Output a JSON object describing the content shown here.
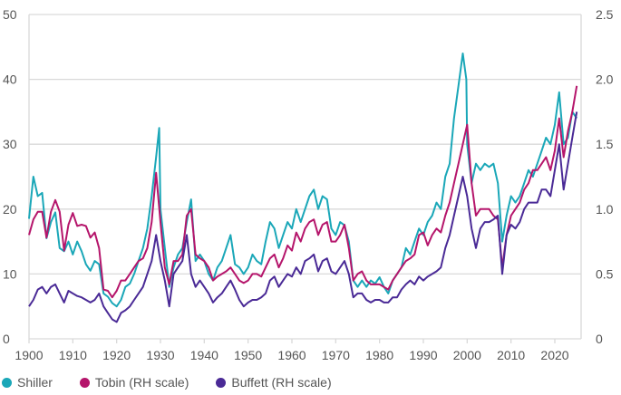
{
  "chart_data": {
    "type": "line",
    "title": "",
    "xlabel": "",
    "ylabel": "",
    "y2label": "",
    "xlim": [
      1900,
      2025
    ],
    "ylim": [
      0,
      50
    ],
    "y2lim": [
      0,
      2.5
    ],
    "grid": true,
    "legend_position": "bottom-left",
    "x_ticks": [
      "1900",
      "1910",
      "1920",
      "1930",
      "1940",
      "1950",
      "1960",
      "1970",
      "1980",
      "1990",
      "2000",
      "2010",
      "2020"
    ],
    "y_ticks": [
      "0",
      "10",
      "20",
      "30",
      "40",
      "50"
    ],
    "y2_ticks": [
      "0",
      "0.5",
      "1.0",
      "1.5",
      "2.0",
      "2.5"
    ],
    "series": [
      {
        "name": "Shiller",
        "axis": "left",
        "color": "#1aa7b8",
        "x": [
          1900,
          1901,
          1902,
          1903,
          1904,
          1905,
          1906,
          1907,
          1908,
          1909,
          1910,
          1911,
          1912,
          1913,
          1914,
          1915,
          1916,
          1917,
          1918,
          1919,
          1920,
          1921,
          1922,
          1923,
          1924,
          1925,
          1926,
          1927,
          1928,
          1929,
          1929.7,
          1930,
          1931,
          1932,
          1933,
          1934,
          1935,
          1936,
          1937,
          1938,
          1939,
          1940,
          1941,
          1942,
          1943,
          1944,
          1945,
          1946,
          1947,
          1948,
          1949,
          1950,
          1951,
          1952,
          1953,
          1954,
          1955,
          1956,
          1957,
          1958,
          1959,
          1960,
          1961,
          1962,
          1963,
          1964,
          1965,
          1966,
          1967,
          1968,
          1969,
          1970,
          1971,
          1972,
          1973,
          1974,
          1975,
          1976,
          1977,
          1978,
          1979,
          1980,
          1981,
          1982,
          1983,
          1984,
          1985,
          1986,
          1987,
          1988,
          1989,
          1990,
          1991,
          1992,
          1993,
          1994,
          1995,
          1996,
          1997,
          1998,
          1999,
          1999.8,
          2000,
          2001,
          2002,
          2003,
          2004,
          2005,
          2006,
          2007,
          2008,
          2009,
          2010,
          2011,
          2012,
          2013,
          2014,
          2015,
          2016,
          2017,
          2018,
          2019,
          2020,
          2021,
          2022,
          2023,
          2024,
          2025
        ],
        "values": [
          18.5,
          25,
          22,
          22.5,
          15.5,
          18,
          19.5,
          14,
          13.5,
          15,
          13,
          15,
          13.5,
          11.5,
          10.5,
          12,
          11.5,
          7,
          6.5,
          5.5,
          5,
          6,
          8,
          8.5,
          10,
          12,
          14,
          17,
          22,
          28,
          32.5,
          20,
          14,
          8,
          11,
          13,
          14,
          18,
          21.5,
          12,
          13,
          12,
          10,
          9,
          11,
          12,
          14,
          16,
          11.5,
          11,
          10,
          11,
          13,
          12,
          11.5,
          15,
          18,
          17,
          14,
          16,
          18,
          17,
          20,
          18,
          20,
          22,
          23,
          20,
          22,
          21.5,
          17,
          16,
          18,
          17.5,
          15,
          9,
          8,
          9,
          8,
          9,
          8.5,
          9.5,
          8,
          7,
          9,
          10,
          11,
          14,
          13,
          15,
          17,
          16,
          18,
          19,
          21,
          20,
          25,
          27,
          34,
          39,
          44,
          40,
          30,
          24,
          27,
          26,
          27,
          26.5,
          27,
          24,
          15,
          19,
          22,
          21,
          22,
          24,
          26,
          25,
          27,
          29,
          31,
          30,
          33,
          38,
          30,
          31,
          35,
          34
        ]
      },
      {
        "name": "Tobin (RH scale)",
        "axis": "right",
        "color": "#b5156b",
        "x": [
          1900,
          1901,
          1902,
          1903,
          1904,
          1905,
          1906,
          1907,
          1908,
          1909,
          1910,
          1911,
          1912,
          1913,
          1914,
          1915,
          1916,
          1917,
          1918,
          1919,
          1920,
          1921,
          1922,
          1923,
          1924,
          1925,
          1926,
          1927,
          1928,
          1929,
          1930,
          1931,
          1932,
          1933,
          1934,
          1935,
          1936,
          1937,
          1938,
          1939,
          1940,
          1941,
          1942,
          1943,
          1944,
          1945,
          1946,
          1947,
          1948,
          1949,
          1950,
          1951,
          1952,
          1953,
          1954,
          1955,
          1956,
          1957,
          1958,
          1959,
          1960,
          1961,
          1962,
          1963,
          1964,
          1965,
          1966,
          1967,
          1968,
          1969,
          1970,
          1971,
          1972,
          1973,
          1974,
          1975,
          1976,
          1977,
          1978,
          1979,
          1980,
          1981,
          1982,
          1983,
          1984,
          1985,
          1986,
          1987,
          1988,
          1989,
          1990,
          1991,
          1992,
          1993,
          1994,
          1995,
          1996,
          1997,
          1998,
          1999,
          2000,
          2001,
          2002,
          2003,
          2004,
          2005,
          2006,
          2007,
          2008,
          2009,
          2010,
          2011,
          2012,
          2013,
          2014,
          2015,
          2016,
          2017,
          2018,
          2019,
          2020,
          2021,
          2022,
          2023,
          2024,
          2025
        ],
        "values": [
          0.8,
          0.92,
          0.98,
          0.98,
          0.78,
          0.98,
          1.07,
          0.98,
          0.68,
          0.88,
          0.97,
          0.87,
          0.88,
          0.87,
          0.78,
          0.82,
          0.7,
          0.38,
          0.37,
          0.32,
          0.37,
          0.45,
          0.45,
          0.5,
          0.55,
          0.6,
          0.62,
          0.7,
          0.9,
          1.28,
          0.9,
          0.55,
          0.42,
          0.6,
          0.6,
          0.65,
          0.95,
          1.0,
          0.65,
          0.62,
          0.6,
          0.55,
          0.45,
          0.48,
          0.5,
          0.52,
          0.55,
          0.5,
          0.45,
          0.43,
          0.45,
          0.5,
          0.5,
          0.48,
          0.55,
          0.62,
          0.65,
          0.55,
          0.62,
          0.72,
          0.68,
          0.82,
          0.75,
          0.85,
          0.9,
          0.92,
          0.8,
          0.88,
          0.9,
          0.75,
          0.75,
          0.8,
          0.88,
          0.7,
          0.45,
          0.5,
          0.52,
          0.45,
          0.42,
          0.42,
          0.42,
          0.4,
          0.38,
          0.45,
          0.5,
          0.55,
          0.6,
          0.62,
          0.65,
          0.8,
          0.82,
          0.72,
          0.8,
          0.85,
          0.82,
          0.95,
          1.05,
          1.2,
          1.35,
          1.5,
          1.65,
          1.2,
          0.95,
          1.0,
          1.0,
          1.0,
          0.95,
          0.92,
          0.55,
          0.8,
          0.95,
          1.0,
          1.05,
          1.15,
          1.2,
          1.3,
          1.3,
          1.35,
          1.4,
          1.3,
          1.45,
          1.7,
          1.4,
          1.6,
          1.75,
          1.95
        ]
      },
      {
        "name": "Buffett (RH scale)",
        "axis": "right",
        "color": "#4a2a96",
        "x": [
          1900,
          1901,
          1902,
          1903,
          1904,
          1905,
          1906,
          1907,
          1908,
          1909,
          1910,
          1911,
          1912,
          1913,
          1914,
          1915,
          1916,
          1917,
          1918,
          1919,
          1920,
          1921,
          1922,
          1923,
          1924,
          1925,
          1926,
          1927,
          1928,
          1929,
          1930,
          1931,
          1932,
          1933,
          1934,
          1935,
          1936,
          1937,
          1938,
          1939,
          1940,
          1941,
          1942,
          1943,
          1944,
          1945,
          1946,
          1947,
          1948,
          1949,
          1950,
          1951,
          1952,
          1953,
          1954,
          1955,
          1956,
          1957,
          1958,
          1959,
          1960,
          1961,
          1962,
          1963,
          1964,
          1965,
          1966,
          1967,
          1968,
          1969,
          1970,
          1971,
          1972,
          1973,
          1974,
          1975,
          1976,
          1977,
          1978,
          1979,
          1980,
          1981,
          1982,
          1983,
          1984,
          1985,
          1986,
          1987,
          1988,
          1989,
          1990,
          1991,
          1992,
          1993,
          1994,
          1995,
          1996,
          1997,
          1998,
          1999,
          2000,
          2001,
          2002,
          2003,
          2004,
          2005,
          2006,
          2007,
          2008,
          2009,
          2010,
          2011,
          2012,
          2013,
          2014,
          2015,
          2016,
          2017,
          2018,
          2019,
          2020,
          2021,
          2022,
          2023,
          2024,
          2025
        ],
        "values": [
          0.25,
          0.3,
          0.38,
          0.4,
          0.35,
          0.4,
          0.42,
          0.35,
          0.28,
          0.37,
          0.35,
          0.33,
          0.32,
          0.3,
          0.28,
          0.3,
          0.35,
          0.25,
          0.2,
          0.15,
          0.13,
          0.2,
          0.22,
          0.25,
          0.3,
          0.35,
          0.4,
          0.5,
          0.6,
          0.8,
          0.6,
          0.45,
          0.25,
          0.5,
          0.55,
          0.6,
          0.8,
          0.5,
          0.4,
          0.45,
          0.4,
          0.35,
          0.28,
          0.32,
          0.35,
          0.4,
          0.45,
          0.38,
          0.3,
          0.25,
          0.28,
          0.3,
          0.3,
          0.32,
          0.35,
          0.45,
          0.48,
          0.4,
          0.45,
          0.5,
          0.48,
          0.55,
          0.5,
          0.6,
          0.62,
          0.65,
          0.52,
          0.6,
          0.62,
          0.52,
          0.5,
          0.55,
          0.6,
          0.5,
          0.32,
          0.35,
          0.35,
          0.3,
          0.28,
          0.3,
          0.3,
          0.28,
          0.28,
          0.32,
          0.32,
          0.38,
          0.42,
          0.45,
          0.42,
          0.48,
          0.45,
          0.48,
          0.5,
          0.52,
          0.55,
          0.7,
          0.8,
          0.95,
          1.1,
          1.25,
          1.1,
          0.85,
          0.7,
          0.85,
          0.9,
          0.9,
          0.92,
          0.95,
          0.5,
          0.8,
          0.88,
          0.85,
          0.9,
          1.0,
          1.05,
          1.05,
          1.05,
          1.15,
          1.15,
          1.1,
          1.3,
          1.5,
          1.15,
          1.35,
          1.55,
          1.75
        ]
      }
    ]
  },
  "legend": {
    "items": [
      {
        "label": "Shiller",
        "color": "#1aa7b8"
      },
      {
        "label": "Tobin (RH scale)",
        "color": "#b5156b"
      },
      {
        "label": "Buffett (RH scale)",
        "color": "#4a2a96"
      }
    ]
  }
}
